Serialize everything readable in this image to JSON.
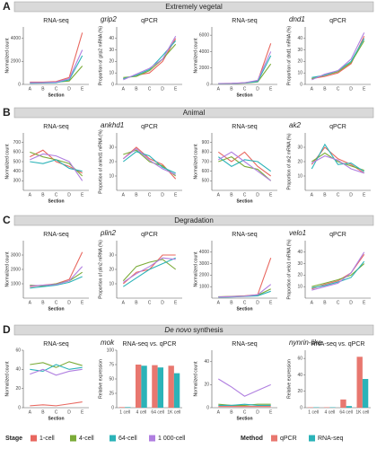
{
  "panels": [
    {
      "letter": "A",
      "title": "Extremely vegetal",
      "genes": [
        "grip2",
        "dnd1"
      ]
    },
    {
      "letter": "B",
      "title": "Animal",
      "genes": [
        "ankhd1",
        "ak2"
      ]
    },
    {
      "letter": "C",
      "title": "Degradation",
      "genes": [
        "plin2",
        "velo1"
      ]
    },
    {
      "letter": "D",
      "title_italic": "De novo",
      "title": "synthesis",
      "genes": [
        "mok",
        "nynrin-like"
      ]
    }
  ],
  "legend": {
    "stage_title": "Stage",
    "stages": [
      {
        "name": "1-cell",
        "color": "#e8675f"
      },
      {
        "name": "4-cell",
        "color": "#7bab38"
      },
      {
        "name": "64-cell",
        "color": "#2bb3b8"
      },
      {
        "name": "1 000-cell",
        "color": "#b07fe0"
      }
    ],
    "method_title": "Method",
    "methods": [
      {
        "name": "qPCR",
        "color": "#e8776f"
      },
      {
        "name": "RNA-seq",
        "color": "#2bb3b8"
      }
    ]
  },
  "chart_data": [
    {
      "type": "line",
      "title": "RNA-seq",
      "x_label": "Section",
      "y_label": "Normalized count",
      "categories": [
        "A",
        "B",
        "C",
        "D",
        "E"
      ],
      "ylim": [
        0,
        5000
      ],
      "yticks": [
        0,
        2000,
        4000
      ],
      "series": [
        {
          "color": "#e8675f",
          "values": [
            200,
            200,
            250,
            600,
            4500
          ]
        },
        {
          "color": "#7bab38",
          "values": [
            150,
            150,
            200,
            300,
            1600
          ]
        },
        {
          "color": "#2bb3b8",
          "values": [
            100,
            120,
            150,
            400,
            2500
          ]
        },
        {
          "color": "#b07fe0",
          "values": [
            150,
            160,
            200,
            500,
            3000
          ]
        }
      ]
    },
    {
      "type": "line",
      "title": "qPCR",
      "y_label": "Proportion of grip2 mRNA (%)",
      "categories": [
        "A",
        "B",
        "C",
        "D",
        "E"
      ],
      "ylim": [
        0,
        50
      ],
      "yticks": [
        0,
        10,
        20,
        30,
        40
      ],
      "series": [
        {
          "color": "#e8675f",
          "values": [
            5,
            8,
            10,
            20,
            40
          ]
        },
        {
          "color": "#7bab38",
          "values": [
            6,
            7,
            12,
            22,
            35
          ]
        },
        {
          "color": "#2bb3b8",
          "values": [
            5,
            8,
            13,
            25,
            38
          ]
        },
        {
          "color": "#b07fe0",
          "values": [
            4,
            9,
            14,
            22,
            42
          ]
        }
      ]
    },
    {
      "type": "line",
      "title": "RNA-seq",
      "x_label": "Section",
      "y_label": "Normalized count",
      "categories": [
        "A",
        "B",
        "C",
        "D",
        "E"
      ],
      "ylim": [
        0,
        7000
      ],
      "yticks": [
        0,
        2000,
        4000,
        6000
      ],
      "series": [
        {
          "color": "#e8675f",
          "values": [
            100,
            120,
            200,
            400,
            5000
          ]
        },
        {
          "color": "#7bab38",
          "values": [
            80,
            100,
            150,
            300,
            2500
          ]
        },
        {
          "color": "#2bb3b8",
          "values": [
            90,
            110,
            180,
            350,
            3500
          ]
        },
        {
          "color": "#b07fe0",
          "values": [
            100,
            130,
            200,
            500,
            4000
          ]
        }
      ]
    },
    {
      "type": "line",
      "title": "qPCR",
      "y_label": "Proportion of dnd1 mRNA (%)",
      "categories": [
        "A",
        "B",
        "C",
        "D",
        "E"
      ],
      "ylim": [
        0,
        50
      ],
      "yticks": [
        0,
        10,
        20,
        30,
        40
      ],
      "series": [
        {
          "color": "#e8675f",
          "values": [
            5,
            7,
            10,
            18,
            42
          ]
        },
        {
          "color": "#7bab38",
          "values": [
            5,
            8,
            11,
            19,
            38
          ]
        },
        {
          "color": "#2bb3b8",
          "values": [
            6,
            8,
            12,
            20,
            40
          ]
        },
        {
          "color": "#b07fe0",
          "values": [
            4,
            9,
            12,
            22,
            45
          ]
        }
      ]
    },
    {
      "type": "line",
      "title": "RNA-seq",
      "x_label": "Section",
      "y_label": "Normalized count",
      "categories": [
        "A",
        "B",
        "C",
        "D",
        "E"
      ],
      "ylim": [
        200,
        800
      ],
      "yticks": [
        300,
        400,
        500,
        600,
        700
      ],
      "series": [
        {
          "color": "#e8675f",
          "values": [
            550,
            620,
            500,
            450,
            380
          ]
        },
        {
          "color": "#7bab38",
          "values": [
            600,
            550,
            520,
            480,
            350
          ]
        },
        {
          "color": "#2bb3b8",
          "values": [
            500,
            480,
            520,
            430,
            400
          ]
        },
        {
          "color": "#b07fe0",
          "values": [
            520,
            580,
            560,
            500,
            300
          ]
        }
      ]
    },
    {
      "type": "line",
      "title": "qPCR",
      "y_label": "Proportion of ankhd1 mRNA (%)",
      "categories": [
        "A",
        "B",
        "C",
        "D",
        "E"
      ],
      "ylim": [
        0,
        40
      ],
      "yticks": [
        10,
        20,
        30
      ],
      "series": [
        {
          "color": "#e8675f",
          "values": [
            22,
            30,
            22,
            18,
            8
          ]
        },
        {
          "color": "#7bab38",
          "values": [
            25,
            28,
            20,
            17,
            10
          ]
        },
        {
          "color": "#2bb3b8",
          "values": [
            20,
            27,
            24,
            16,
            12
          ]
        },
        {
          "color": "#b07fe0",
          "values": [
            22,
            29,
            21,
            15,
            11
          ]
        }
      ]
    },
    {
      "type": "line",
      "title": "RNA-seq",
      "x_label": "Section",
      "y_label": "Normalized count",
      "categories": [
        "A",
        "B",
        "C",
        "D",
        "E"
      ],
      "ylim": [
        400,
        1000
      ],
      "yticks": [
        500,
        600,
        700,
        800,
        900
      ],
      "series": [
        {
          "color": "#e8675f",
          "values": [
            800,
            700,
            800,
            650,
            550
          ]
        },
        {
          "color": "#7bab38",
          "values": [
            700,
            750,
            650,
            620,
            500
          ]
        },
        {
          "color": "#2bb3b8",
          "values": [
            750,
            650,
            720,
            700,
            600
          ]
        },
        {
          "color": "#b07fe0",
          "values": [
            720,
            800,
            700,
            600,
            500
          ]
        }
      ]
    },
    {
      "type": "line",
      "title": "qPCR",
      "y_label": "Proportion of ak2 mRNA (%)",
      "categories": [
        "A",
        "B",
        "C",
        "D",
        "E"
      ],
      "ylim": [
        0,
        40
      ],
      "yticks": [
        10,
        20,
        30
      ],
      "series": [
        {
          "color": "#e8675f",
          "values": [
            18,
            30,
            22,
            18,
            12
          ]
        },
        {
          "color": "#7bab38",
          "values": [
            20,
            26,
            20,
            17,
            14
          ]
        },
        {
          "color": "#2bb3b8",
          "values": [
            15,
            32,
            18,
            19,
            13
          ]
        },
        {
          "color": "#b07fe0",
          "values": [
            19,
            24,
            21,
            15,
            12
          ]
        }
      ]
    },
    {
      "type": "line",
      "title": "RNA-seq",
      "x_label": "Section",
      "y_label": "Normalized count",
      "categories": [
        "A",
        "B",
        "C",
        "D",
        "E"
      ],
      "ylim": [
        0,
        4000
      ],
      "yticks": [
        1000,
        2000,
        3000
      ],
      "series": [
        {
          "color": "#e8675f",
          "values": [
            800,
            900,
            1000,
            1300,
            3200
          ]
        },
        {
          "color": "#7bab38",
          "values": [
            900,
            850,
            1000,
            1200,
            1800
          ]
        },
        {
          "color": "#2bb3b8",
          "values": [
            700,
            800,
            900,
            1100,
            1500
          ]
        },
        {
          "color": "#b07fe0",
          "values": [
            850,
            900,
            950,
            1200,
            2200
          ]
        }
      ]
    },
    {
      "type": "line",
      "title": "qPCR",
      "y_label": "Proportion of plin2 mRNA (%)",
      "categories": [
        "A",
        "B",
        "C",
        "D",
        "E"
      ],
      "ylim": [
        0,
        40
      ],
      "yticks": [
        10,
        20,
        30
      ],
      "series": [
        {
          "color": "#e8675f",
          "values": [
            10,
            18,
            20,
            30,
            30
          ]
        },
        {
          "color": "#7bab38",
          "values": [
            12,
            22,
            25,
            27,
            20
          ]
        },
        {
          "color": "#2bb3b8",
          "values": [
            8,
            14,
            20,
            24,
            28
          ]
        },
        {
          "color": "#b07fe0",
          "values": [
            11,
            17,
            22,
            28,
            27
          ]
        }
      ]
    },
    {
      "type": "line",
      "title": "RNA-seq",
      "x_label": "Section",
      "y_label": "Normalized count",
      "categories": [
        "A",
        "B",
        "C",
        "D",
        "E"
      ],
      "ylim": [
        0,
        5000
      ],
      "yticks": [
        1000,
        2000,
        3000,
        4000
      ],
      "series": [
        {
          "color": "#e8675f",
          "values": [
            100,
            150,
            200,
            300,
            3500
          ]
        },
        {
          "color": "#7bab38",
          "values": [
            120,
            140,
            180,
            250,
            800
          ]
        },
        {
          "color": "#2bb3b8",
          "values": [
            80,
            100,
            150,
            200,
            600
          ]
        },
        {
          "color": "#b07fe0",
          "values": [
            100,
            130,
            170,
            300,
            1200
          ]
        }
      ]
    },
    {
      "type": "line",
      "title": "qPCR",
      "y_label": "Proportion of velo1 mRNA (%)",
      "categories": [
        "A",
        "B",
        "C",
        "D",
        "E"
      ],
      "ylim": [
        0,
        50
      ],
      "yticks": [
        10,
        20,
        30,
        40
      ],
      "series": [
        {
          "color": "#e8675f",
          "values": [
            8,
            12,
            15,
            22,
            38
          ]
        },
        {
          "color": "#7bab38",
          "values": [
            10,
            13,
            16,
            20,
            30
          ]
        },
        {
          "color": "#2bb3b8",
          "values": [
            9,
            11,
            14,
            18,
            32
          ]
        },
        {
          "color": "#b07fe0",
          "values": [
            7,
            10,
            13,
            22,
            40
          ]
        }
      ]
    },
    {
      "type": "line",
      "title": "RNA-seq",
      "x_label": "Section",
      "y_label": "Normalized count",
      "categories": [
        "A",
        "B",
        "C",
        "D",
        "E"
      ],
      "ylim": [
        0,
        60
      ],
      "yticks": [
        0,
        20,
        40,
        60
      ],
      "series": [
        {
          "color": "#e8675f",
          "values": [
            2,
            3,
            2,
            4,
            6
          ]
        },
        {
          "color": "#7bab38",
          "values": [
            45,
            47,
            42,
            48,
            44
          ]
        },
        {
          "color": "#2bb3b8",
          "values": [
            40,
            38,
            45,
            40,
            42
          ]
        },
        {
          "color": "#b07fe0",
          "values": [
            35,
            40,
            34,
            38,
            40
          ]
        }
      ]
    },
    {
      "type": "bar",
      "title": "RNA-seq vs. qPCR",
      "y_label": "Relative expression",
      "categories": [
        "1 cell",
        "4 cell",
        "64 cell",
        "1K cell"
      ],
      "ylim": [
        0,
        100
      ],
      "yticks": [
        0,
        25,
        50,
        75,
        100
      ],
      "series": [
        {
          "color": "#e8776f",
          "values": [
            1,
            75,
            74,
            73
          ]
        },
        {
          "color": "#2bb3b8",
          "values": [
            1,
            73,
            70,
            60
          ]
        }
      ]
    },
    {
      "type": "line",
      "title": "RNA-seq",
      "x_label": "Section",
      "y_label": "Normalized count",
      "categories": [
        "A",
        "B",
        "C",
        "D",
        "E"
      ],
      "ylim": [
        0,
        50
      ],
      "yticks": [
        0,
        20,
        40
      ],
      "series": [
        {
          "color": "#e8675f",
          "values": [
            1,
            1,
            1,
            1,
            1
          ]
        },
        {
          "color": "#7bab38",
          "values": [
            3,
            2,
            2,
            3,
            3
          ]
        },
        {
          "color": "#2bb3b8",
          "values": [
            2,
            2,
            3,
            2,
            2
          ]
        },
        {
          "color": "#b07fe0",
          "values": [
            25,
            18,
            10,
            15,
            20
          ]
        }
      ]
    },
    {
      "type": "bar",
      "title": "RNA-seq vs. qPCR",
      "y_label": "Relative expression",
      "categories": [
        "1 cell",
        "4 cell",
        "64 cell",
        "1K cell"
      ],
      "ylim": [
        0,
        70
      ],
      "yticks": [
        0,
        20,
        40,
        60
      ],
      "series": [
        {
          "color": "#e8776f",
          "values": [
            0.5,
            0.5,
            10,
            62
          ]
        },
        {
          "color": "#2bb3b8",
          "values": [
            0.5,
            0.5,
            2,
            35
          ]
        }
      ]
    }
  ]
}
